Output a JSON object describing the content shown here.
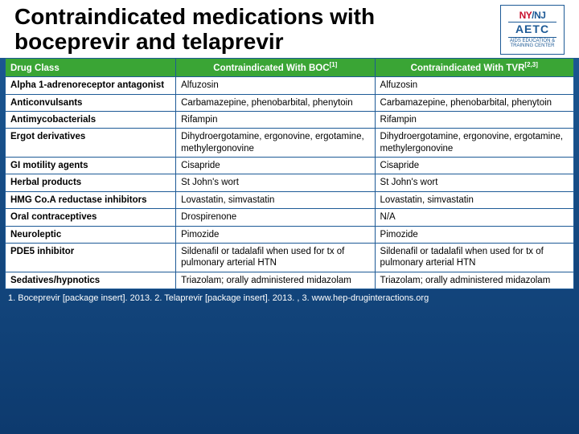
{
  "title": "Contraindicated medications with boceprevir and telaprevir",
  "logo": {
    "ny": "NY",
    "slash": "/",
    "nj": "NJ",
    "aetc": "AETC",
    "sub": "AIDS EDUCATION & TRAINING CENTER"
  },
  "table": {
    "columns": [
      {
        "label": "Drug Class",
        "sup": ""
      },
      {
        "label": "Contraindicated With BOC",
        "sup": "[1]"
      },
      {
        "label": "Contraindicated With TVR",
        "sup": "[2,3]"
      }
    ],
    "rows": [
      [
        "Alpha 1-adrenoreceptor antagonist",
        "Alfuzosin",
        "Alfuzosin"
      ],
      [
        "Anticonvulsants",
        "Carbamazepine, phenobarbital, phenytoin",
        "Carbamazepine, phenobarbital, phenytoin"
      ],
      [
        "Antimycobacterials",
        "Rifampin",
        "Rifampin"
      ],
      [
        "Ergot derivatives",
        "Dihydroergotamine, ergonovine, ergotamine, methylergonovine",
        "Dihydroergotamine, ergonovine, ergotamine, methylergonovine"
      ],
      [
        "GI motility agents",
        "Cisapride",
        "Cisapride"
      ],
      [
        "Herbal products",
        "St John's wort",
        "St John's wort"
      ],
      [
        "HMG Co.A reductase inhibitors",
        "Lovastatin, simvastatin",
        "Lovastatin, simvastatin"
      ],
      [
        "Oral contraceptives",
        "Drospirenone",
        "N/A"
      ],
      [
        "Neuroleptic",
        "Pimozide",
        "Pimozide"
      ],
      [
        "PDE5 inhibitor",
        "Sildenafil or tadalafil when used for tx of pulmonary arterial HTN",
        "Sildenafil or tadalafil when used for tx of pulmonary arterial HTN"
      ],
      [
        "Sedatives/hypnotics",
        "Triazolam; orally administered midazolam",
        "Triazolam; orally administered midazolam"
      ]
    ]
  },
  "footnote": "1. Boceprevir [package insert]. 2013. 2. Telaprevir [package insert]. 2013. , 3. www.hep-druginteractions.org",
  "styles": {
    "header_bg": "#3aa535",
    "border_color": "#1d5a96",
    "slide_bg_top": "#1d5a96",
    "slide_bg_bottom": "#0d3a6e",
    "title_fontsize": 28,
    "cell_fontsize": 11.5,
    "col_widths_pct": [
      30,
      35,
      35
    ]
  }
}
